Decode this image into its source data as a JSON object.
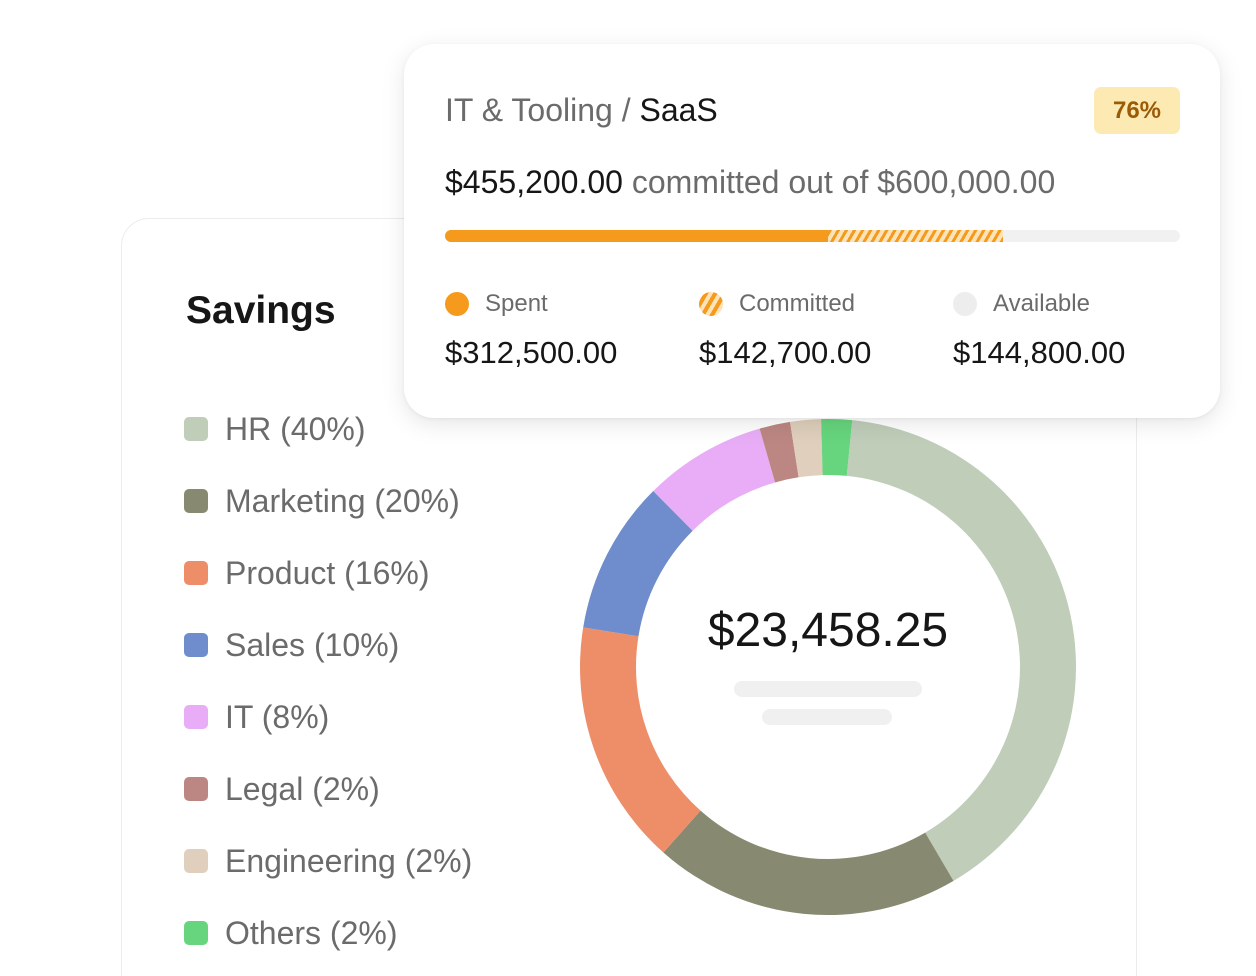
{
  "savings": {
    "title": "Savings",
    "total": "$23,458.25",
    "legend": [
      {
        "label": "HR (40%)",
        "color": "#bfcdb9"
      },
      {
        "label": "Marketing (20%)",
        "color": "#878970"
      },
      {
        "label": "Product (16%)",
        "color": "#ee8e69"
      },
      {
        "label": "Sales (10%)",
        "color": "#6f8ccc"
      },
      {
        "label": "IT (8%)",
        "color": "#e8adf6"
      },
      {
        "label": "Legal (2%)",
        "color": "#bc8782"
      },
      {
        "label": "Engineering (2%)",
        "color": "#dfcfbc"
      },
      {
        "label": "Others (2%)",
        "color": "#66d57d"
      }
    ]
  },
  "chart_data": {
    "type": "pie",
    "style": "donut",
    "categories": [
      "HR",
      "Marketing",
      "Product",
      "Sales",
      "IT",
      "Legal",
      "Engineering",
      "Others"
    ],
    "values": [
      40,
      20,
      16,
      10,
      8,
      2,
      2,
      2
    ],
    "unit": "%",
    "colors": [
      "#bfcdb9",
      "#878970",
      "#ee8e69",
      "#6f8ccc",
      "#e8adf6",
      "#bc8782",
      "#dfcfbc",
      "#66d57d"
    ],
    "title": "Savings",
    "center_label": "$23,458.25"
  },
  "budget": {
    "category": "IT & Tooling",
    "separator": " / ",
    "subcategory": "SaaS",
    "percent_badge": "76%",
    "committed_amount": "$455,200.00",
    "committed_text": " committed out of ",
    "total_amount": "$600,000.00",
    "progress": {
      "spent_fraction": 0.521,
      "committed_fraction": 0.238,
      "spent_color": "#f59a1c",
      "track_color": "#f1f1f1"
    },
    "stats": [
      {
        "label": "Spent",
        "value": "$312,500.00",
        "dot": "spent"
      },
      {
        "label": "Committed",
        "value": "$142,700.00",
        "dot": "committed"
      },
      {
        "label": "Available",
        "value": "$144,800.00",
        "dot": "available"
      }
    ]
  },
  "colors": {
    "badge_bg": "#fdeab3",
    "badge_text": "#9a5a06",
    "text_primary": "#161616",
    "text_secondary": "#6b6b6b"
  }
}
